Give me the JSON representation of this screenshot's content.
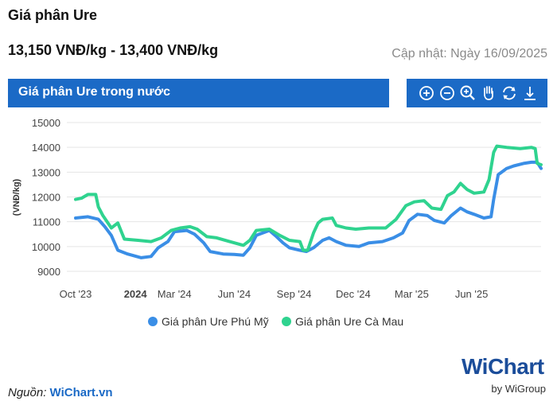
{
  "header": {
    "title": "Giá phân Ure",
    "price_range": "13,150 VNĐ/kg - 13,400 VNĐ/kg",
    "updated": "Cập nhật: Ngày 16/09/2025"
  },
  "chart_panel": {
    "title": "Giá phân Ure trong nước",
    "tools": [
      "zoom-in-icon",
      "zoom-out-icon",
      "magnify-icon",
      "pan-hand-icon",
      "reset-icon",
      "download-icon"
    ]
  },
  "footer": {
    "source_label": "Nguồn:",
    "source_link": "WiChart.vn",
    "brand": "WiChart",
    "brand_sub": "by WiGroup"
  },
  "colors": {
    "header_bg": "#1b6ac6",
    "phu_my": "#3a8ee6",
    "ca_mau": "#2fd38f",
    "grid": "#e5e5e5"
  },
  "chart_data": {
    "type": "line",
    "ylabel": "(VNĐ/kg)",
    "ylim": [
      9000,
      15000
    ],
    "yticks": [
      9000,
      10000,
      11000,
      12000,
      13000,
      14000,
      15000
    ],
    "xlim": [
      "2023-10-01",
      "2025-09-16"
    ],
    "xticks": [
      {
        "date": "2023-10-01",
        "label": "Oct '23",
        "bold": false
      },
      {
        "date": "2024-01-01",
        "label": "2024",
        "bold": true
      },
      {
        "date": "2024-03-01",
        "label": "Mar '24",
        "bold": false
      },
      {
        "date": "2024-06-01",
        "label": "Jun '24",
        "bold": false
      },
      {
        "date": "2024-09-01",
        "label": "Sep '24",
        "bold": false
      },
      {
        "date": "2024-12-01",
        "label": "Dec '24",
        "bold": false
      },
      {
        "date": "2025-03-01",
        "label": "Mar '25",
        "bold": false
      },
      {
        "date": "2025-06-01",
        "label": "Jun '25",
        "bold": false
      }
    ],
    "legend_position": "bottom-center",
    "series": [
      {
        "name": "Giá phân Ure Phú Mỹ",
        "color": "#3a8ee6",
        "points": [
          [
            "2023-10-01",
            11150
          ],
          [
            "2023-10-20",
            11200
          ],
          [
            "2023-11-05",
            11100
          ],
          [
            "2023-11-15",
            10800
          ],
          [
            "2023-11-25",
            10450
          ],
          [
            "2023-12-05",
            9850
          ],
          [
            "2023-12-20",
            9700
          ],
          [
            "2024-01-10",
            9550
          ],
          [
            "2024-01-25",
            9600
          ],
          [
            "2024-02-05",
            9950
          ],
          [
            "2024-02-20",
            10200
          ],
          [
            "2024-03-01",
            10600
          ],
          [
            "2024-03-20",
            10650
          ],
          [
            "2024-04-01",
            10500
          ],
          [
            "2024-04-15",
            10150
          ],
          [
            "2024-04-25",
            9800
          ],
          [
            "2024-05-15",
            9700
          ],
          [
            "2024-06-01",
            9680
          ],
          [
            "2024-06-15",
            9650
          ],
          [
            "2024-06-25",
            9950
          ],
          [
            "2024-07-05",
            10450
          ],
          [
            "2024-07-25",
            10650
          ],
          [
            "2024-08-05",
            10400
          ],
          [
            "2024-08-15",
            10150
          ],
          [
            "2024-08-25",
            9950
          ],
          [
            "2024-09-10",
            9850
          ],
          [
            "2024-09-20",
            9800
          ],
          [
            "2024-10-01",
            9950
          ],
          [
            "2024-10-15",
            10250
          ],
          [
            "2024-10-25",
            10350
          ],
          [
            "2024-11-05",
            10200
          ],
          [
            "2024-11-20",
            10050
          ],
          [
            "2024-12-10",
            10000
          ],
          [
            "2024-12-25",
            10150
          ],
          [
            "2025-01-15",
            10200
          ],
          [
            "2025-02-01",
            10350
          ],
          [
            "2025-02-15",
            10550
          ],
          [
            "2025-02-25",
            11050
          ],
          [
            "2025-03-10",
            11300
          ],
          [
            "2025-03-25",
            11250
          ],
          [
            "2025-04-05",
            11050
          ],
          [
            "2025-04-20",
            10950
          ],
          [
            "2025-05-01",
            11250
          ],
          [
            "2025-05-15",
            11550
          ],
          [
            "2025-05-25",
            11400
          ],
          [
            "2025-06-05",
            11300
          ],
          [
            "2025-06-20",
            11150
          ],
          [
            "2025-07-01",
            11200
          ],
          [
            "2025-07-05",
            11900
          ],
          [
            "2025-07-12",
            12900
          ],
          [
            "2025-07-25",
            13150
          ],
          [
            "2025-08-05",
            13250
          ],
          [
            "2025-08-20",
            13350
          ],
          [
            "2025-09-01",
            13400
          ],
          [
            "2025-09-10",
            13400
          ],
          [
            "2025-09-16",
            13150
          ]
        ]
      },
      {
        "name": "Giá phân Ure Cà Mau",
        "color": "#2fd38f",
        "points": [
          [
            "2023-10-01",
            11900
          ],
          [
            "2023-10-10",
            11950
          ],
          [
            "2023-10-20",
            12100
          ],
          [
            "2023-11-01",
            12100
          ],
          [
            "2023-11-05",
            11600
          ],
          [
            "2023-11-12",
            11250
          ],
          [
            "2023-11-25",
            10750
          ],
          [
            "2023-12-05",
            10950
          ],
          [
            "2023-12-15",
            10300
          ],
          [
            "2024-01-05",
            10250
          ],
          [
            "2024-01-25",
            10200
          ],
          [
            "2024-02-10",
            10350
          ],
          [
            "2024-02-25",
            10650
          ],
          [
            "2024-03-10",
            10750
          ],
          [
            "2024-03-25",
            10800
          ],
          [
            "2024-04-05",
            10700
          ],
          [
            "2024-04-20",
            10400
          ],
          [
            "2024-05-05",
            10350
          ],
          [
            "2024-05-25",
            10200
          ],
          [
            "2024-06-15",
            10050
          ],
          [
            "2024-06-25",
            10250
          ],
          [
            "2024-07-05",
            10650
          ],
          [
            "2024-07-25",
            10700
          ],
          [
            "2024-08-10",
            10450
          ],
          [
            "2024-08-25",
            10250
          ],
          [
            "2024-09-10",
            10200
          ],
          [
            "2024-09-15",
            9850
          ],
          [
            "2024-09-22",
            9850
          ],
          [
            "2024-10-01",
            10550
          ],
          [
            "2024-10-08",
            10950
          ],
          [
            "2024-10-15",
            11100
          ],
          [
            "2024-10-30",
            11150
          ],
          [
            "2024-11-05",
            10850
          ],
          [
            "2024-11-20",
            10750
          ],
          [
            "2024-12-05",
            10700
          ],
          [
            "2024-12-25",
            10750
          ],
          [
            "2025-01-20",
            10750
          ],
          [
            "2025-02-05",
            11100
          ],
          [
            "2025-02-20",
            11650
          ],
          [
            "2025-03-05",
            11800
          ],
          [
            "2025-03-20",
            11850
          ],
          [
            "2025-04-01",
            11550
          ],
          [
            "2025-04-15",
            11500
          ],
          [
            "2025-04-25",
            12050
          ],
          [
            "2025-05-05",
            12200
          ],
          [
            "2025-05-15",
            12550
          ],
          [
            "2025-05-25",
            12300
          ],
          [
            "2025-06-05",
            12150
          ],
          [
            "2025-06-20",
            12200
          ],
          [
            "2025-06-28",
            12700
          ],
          [
            "2025-07-05",
            13800
          ],
          [
            "2025-07-10",
            14050
          ],
          [
            "2025-07-25",
            14000
          ],
          [
            "2025-08-15",
            13950
          ],
          [
            "2025-09-01",
            14000
          ],
          [
            "2025-09-07",
            13950
          ],
          [
            "2025-09-10",
            13350
          ],
          [
            "2025-09-16",
            13300
          ]
        ]
      }
    ]
  }
}
